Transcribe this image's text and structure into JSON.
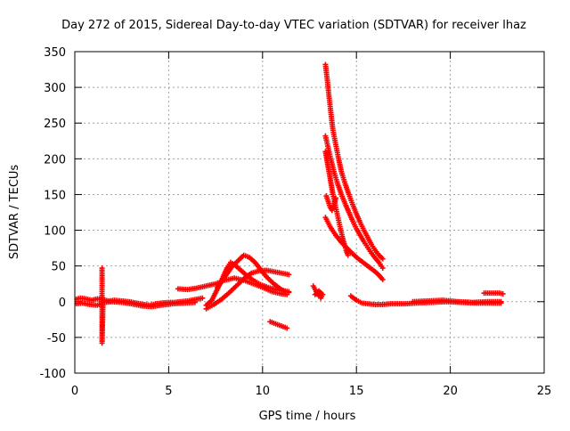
{
  "chart_data": {
    "type": "scatter",
    "title": "Day 272 of 2015, Sidereal Day-to-day VTEC variation (SDTVAR) for receiver lhaz",
    "xlabel": "GPS time / hours",
    "ylabel": "SDTVAR / TECUs",
    "xlim": [
      0,
      25
    ],
    "ylim": [
      -100,
      350
    ],
    "xticks": [
      0,
      5,
      10,
      15,
      20,
      25
    ],
    "yticks": [
      -100,
      -50,
      0,
      50,
      100,
      150,
      200,
      250,
      300,
      350
    ],
    "grid": true,
    "marker": "+",
    "series_color": "#ff0000",
    "segments": [
      {
        "name": "baseline-start",
        "points": [
          [
            0.0,
            3
          ],
          [
            0.3,
            5
          ],
          [
            0.6,
            4
          ],
          [
            0.9,
            2
          ],
          [
            1.2,
            4
          ],
          [
            1.5,
            3
          ],
          [
            1.8,
            1
          ],
          [
            2.1,
            2
          ],
          [
            2.5,
            1
          ],
          [
            2.9,
            0
          ],
          [
            3.3,
            -2
          ],
          [
            3.7,
            -4
          ],
          [
            4.0,
            -5
          ],
          [
            4.3,
            -3
          ],
          [
            4.6,
            -2
          ],
          [
            5.0,
            -1
          ],
          [
            5.3,
            -1
          ],
          [
            5.6,
            0
          ],
          [
            6.0,
            1
          ],
          [
            6.4,
            3
          ],
          [
            6.8,
            5
          ]
        ]
      },
      {
        "name": "baseline-start-lower",
        "points": [
          [
            0.0,
            -3
          ],
          [
            0.4,
            -2
          ],
          [
            0.8,
            -4
          ],
          [
            1.2,
            -5
          ],
          [
            1.6,
            -1
          ],
          [
            2.0,
            0
          ],
          [
            2.5,
            -1
          ],
          [
            3.0,
            -3
          ],
          [
            3.6,
            -6
          ],
          [
            4.1,
            -7
          ],
          [
            4.6,
            -5
          ],
          [
            5.2,
            -3
          ],
          [
            5.8,
            -2
          ],
          [
            6.4,
            -1
          ]
        ]
      },
      {
        "name": "outliers-1.5h",
        "points": [
          [
            1.45,
            47
          ],
          [
            1.45,
            -35
          ],
          [
            1.45,
            -58
          ],
          [
            1.5,
            -5
          ]
        ]
      },
      {
        "name": "arc-a",
        "points": [
          [
            7.0,
            -10
          ],
          [
            7.4,
            -4
          ],
          [
            7.8,
            3
          ],
          [
            8.2,
            12
          ],
          [
            8.6,
            22
          ],
          [
            9.0,
            32
          ],
          [
            9.4,
            40
          ],
          [
            9.8,
            43
          ],
          [
            10.2,
            44
          ],
          [
            10.6,
            42
          ],
          [
            11.0,
            40
          ],
          [
            11.4,
            38
          ]
        ]
      },
      {
        "name": "arc-b",
        "points": [
          [
            7.0,
            -5
          ],
          [
            7.3,
            2
          ],
          [
            7.6,
            18
          ],
          [
            7.9,
            35
          ],
          [
            8.1,
            47
          ],
          [
            8.3,
            55
          ],
          [
            8.5,
            52
          ],
          [
            8.8,
            45
          ],
          [
            9.1,
            38
          ],
          [
            9.5,
            30
          ],
          [
            9.9,
            24
          ],
          [
            10.3,
            20
          ],
          [
            10.7,
            17
          ],
          [
            11.1,
            15
          ],
          [
            11.4,
            14
          ]
        ]
      },
      {
        "name": "arc-c",
        "points": [
          [
            7.6,
            20
          ],
          [
            8.0,
            35
          ],
          [
            8.4,
            50
          ],
          [
            8.8,
            60
          ],
          [
            9.0,
            65
          ],
          [
            9.3,
            62
          ],
          [
            9.6,
            55
          ],
          [
            9.9,
            45
          ],
          [
            10.2,
            35
          ],
          [
            10.6,
            25
          ],
          [
            11.0,
            17
          ],
          [
            11.4,
            13
          ]
        ]
      },
      {
        "name": "arc-d",
        "points": [
          [
            5.5,
            18
          ],
          [
            6.0,
            17
          ],
          [
            6.5,
            19
          ],
          [
            7.0,
            22
          ],
          [
            7.5,
            25
          ],
          [
            8.0,
            30
          ],
          [
            8.5,
            33
          ],
          [
            9.0,
            30
          ],
          [
            9.5,
            25
          ],
          [
            10.0,
            20
          ],
          [
            10.5,
            14
          ],
          [
            11.0,
            11
          ],
          [
            11.3,
            10
          ]
        ]
      },
      {
        "name": "dip-10.5h",
        "points": [
          [
            10.4,
            -28
          ],
          [
            10.7,
            -31
          ],
          [
            11.0,
            -34
          ],
          [
            11.3,
            -37
          ]
        ]
      },
      {
        "name": "cluster-13h",
        "points": [
          [
            12.7,
            22
          ],
          [
            12.8,
            17
          ],
          [
            12.9,
            12
          ],
          [
            13.0,
            8
          ],
          [
            13.1,
            5
          ],
          [
            13.2,
            10
          ],
          [
            13.0,
            15
          ],
          [
            12.8,
            10
          ]
        ]
      },
      {
        "name": "storm-peak",
        "points": [
          [
            13.35,
            332
          ],
          [
            13.45,
            310
          ],
          [
            13.55,
            285
          ],
          [
            13.65,
            262
          ],
          [
            13.75,
            240
          ],
          [
            13.9,
            220
          ],
          [
            14.05,
            200
          ],
          [
            14.2,
            182
          ],
          [
            14.4,
            165
          ],
          [
            14.6,
            150
          ],
          [
            14.8,
            136
          ],
          [
            15.0,
            123
          ],
          [
            15.2,
            111
          ],
          [
            15.4,
            100
          ],
          [
            15.6,
            90
          ],
          [
            15.8,
            80
          ],
          [
            16.0,
            72
          ],
          [
            16.2,
            65
          ],
          [
            16.4,
            60
          ]
        ]
      },
      {
        "name": "storm-branch-2",
        "points": [
          [
            13.35,
            232
          ],
          [
            13.5,
            215
          ],
          [
            13.65,
            198
          ],
          [
            13.8,
            182
          ],
          [
            14.0,
            165
          ],
          [
            14.2,
            150
          ],
          [
            14.4,
            137
          ],
          [
            14.6,
            125
          ],
          [
            14.8,
            113
          ],
          [
            15.0,
            102
          ],
          [
            15.2,
            93
          ],
          [
            15.4,
            84
          ],
          [
            15.6,
            76
          ],
          [
            15.8,
            68
          ],
          [
            16.0,
            61
          ],
          [
            16.2,
            55
          ],
          [
            16.4,
            47
          ]
        ]
      },
      {
        "name": "storm-branch-3",
        "points": [
          [
            13.35,
            210
          ],
          [
            13.45,
            195
          ],
          [
            13.55,
            180
          ],
          [
            13.65,
            165
          ],
          [
            13.75,
            150
          ],
          [
            13.85,
            138
          ],
          [
            13.95,
            126
          ],
          [
            14.05,
            114
          ],
          [
            14.15,
            102
          ],
          [
            14.25,
            91
          ],
          [
            14.35,
            81
          ],
          [
            14.45,
            72
          ],
          [
            14.55,
            65
          ]
        ]
      },
      {
        "name": "storm-branch-4",
        "points": [
          [
            13.35,
            118
          ],
          [
            13.6,
            105
          ],
          [
            13.9,
            93
          ],
          [
            14.2,
            83
          ],
          [
            14.5,
            75
          ],
          [
            14.8,
            67
          ],
          [
            15.1,
            60
          ],
          [
            15.4,
            54
          ],
          [
            15.7,
            48
          ],
          [
            16.0,
            42
          ],
          [
            16.2,
            37
          ],
          [
            16.4,
            31
          ]
        ]
      },
      {
        "name": "storm-branch-5",
        "points": [
          [
            13.4,
            148
          ],
          [
            13.5,
            140
          ],
          [
            13.6,
            132
          ],
          [
            13.7,
            128
          ],
          [
            13.8,
            135
          ],
          [
            13.9,
            145
          ]
        ]
      },
      {
        "name": "recovery",
        "points": [
          [
            14.7,
            8
          ],
          [
            15.0,
            2
          ],
          [
            15.3,
            -2
          ],
          [
            15.6,
            -3
          ],
          [
            16.0,
            -4
          ],
          [
            16.4,
            -4
          ],
          [
            16.8,
            -3
          ],
          [
            17.5,
            -3
          ],
          [
            18.2,
            -2
          ],
          [
            19.0,
            -1
          ],
          [
            19.8,
            0
          ],
          [
            20.6,
            -1
          ],
          [
            21.4,
            -2
          ],
          [
            22.2,
            -2
          ],
          [
            22.7,
            -2
          ]
        ]
      },
      {
        "name": "recovery-upper",
        "points": [
          [
            18.0,
            0
          ],
          [
            18.8,
            1
          ],
          [
            19.6,
            2
          ],
          [
            20.4,
            0
          ],
          [
            21.2,
            -1
          ],
          [
            22.0,
            0
          ],
          [
            22.7,
            0
          ]
        ]
      },
      {
        "name": "end-cluster",
        "points": [
          [
            21.8,
            12
          ],
          [
            22.0,
            12
          ],
          [
            22.2,
            12
          ],
          [
            22.4,
            12
          ],
          [
            22.6,
            12
          ],
          [
            22.8,
            11
          ]
        ]
      }
    ]
  }
}
